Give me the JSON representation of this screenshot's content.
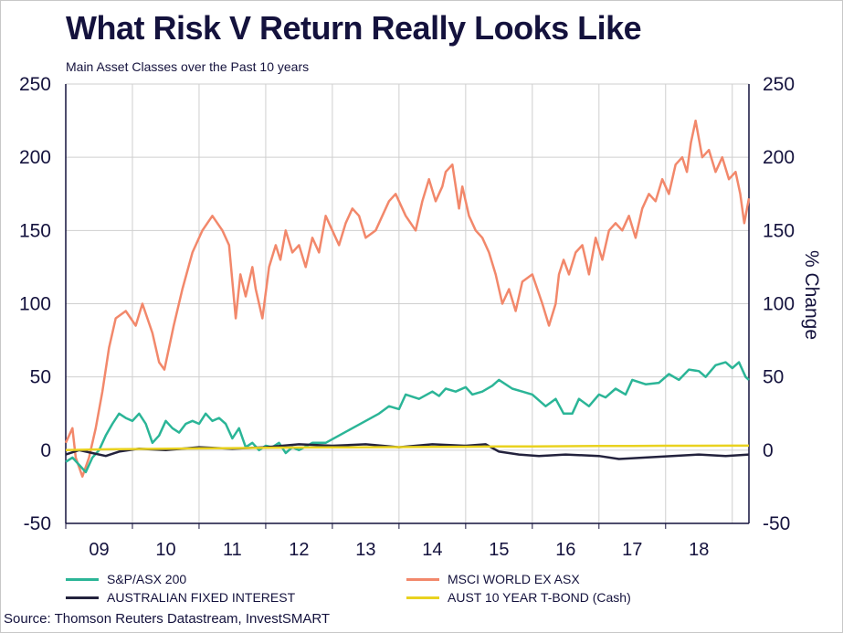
{
  "title": "What Risk V Return Really Looks Like",
  "subtitle": "Main Asset Classes over the Past 10 years",
  "source": "Source: Thomson Reuters Datastream, InvestSMART",
  "colors": {
    "sp_asx": "#2bb597",
    "msci": "#f2886b",
    "fixed": "#23223d",
    "tbond": "#e9d21f",
    "grid": "#cfcfcf",
    "text": "#14123d"
  },
  "chart_data": {
    "type": "line",
    "ylabel_right": "% Change",
    "ylim": [
      -50,
      250
    ],
    "yticks": [
      -50,
      0,
      50,
      100,
      150,
      200,
      250
    ],
    "xlim": [
      2008.5,
      2018.75
    ],
    "xticks": [
      {
        "label": "09",
        "x": 2009
      },
      {
        "label": "10",
        "x": 2010
      },
      {
        "label": "11",
        "x": 2011
      },
      {
        "label": "12",
        "x": 2012
      },
      {
        "label": "13",
        "x": 2013
      },
      {
        "label": "14",
        "x": 2014
      },
      {
        "label": "15",
        "x": 2015
      },
      {
        "label": "16",
        "x": 2016
      },
      {
        "label": "17",
        "x": 2017
      },
      {
        "label": "18",
        "x": 2018
      }
    ],
    "grid": true,
    "legend_position": "bottom",
    "series": [
      {
        "name": "MSCI WORLD EX ASX",
        "color_key": "msci",
        "x": [
          2008.5,
          2008.6,
          2008.65,
          2008.75,
          2008.85,
          2008.95,
          2009.05,
          2009.15,
          2009.25,
          2009.4,
          2009.55,
          2009.65,
          2009.8,
          2009.9,
          2009.98,
          2010.05,
          2010.12,
          2010.25,
          2010.4,
          2010.55,
          2010.7,
          2010.85,
          2010.95,
          2011.05,
          2011.12,
          2011.2,
          2011.3,
          2011.35,
          2011.45,
          2011.55,
          2011.65,
          2011.72,
          2011.8,
          2011.9,
          2012.0,
          2012.1,
          2012.2,
          2012.3,
          2012.4,
          2012.5,
          2012.6,
          2012.7,
          2012.8,
          2012.9,
          2013.0,
          2013.15,
          2013.25,
          2013.35,
          2013.45,
          2013.6,
          2013.75,
          2013.85,
          2013.95,
          2014.05,
          2014.15,
          2014.2,
          2014.3,
          2014.4,
          2014.45,
          2014.55,
          2014.65,
          2014.75,
          2014.85,
          2014.95,
          2015.05,
          2015.15,
          2015.25,
          2015.35,
          2015.5,
          2015.65,
          2015.75,
          2015.85,
          2015.9,
          2015.97,
          2016.05,
          2016.15,
          2016.25,
          2016.35,
          2016.45,
          2016.55,
          2016.65,
          2016.75,
          2016.85,
          2016.95,
          2017.05,
          2017.15,
          2017.25,
          2017.35,
          2017.45,
          2017.55,
          2017.65,
          2017.75,
          2017.82,
          2017.88,
          2017.95,
          2018.05,
          2018.15,
          2018.25,
          2018.35,
          2018.45,
          2018.55,
          2018.62,
          2018.68,
          2018.75
        ],
        "values": [
          5,
          15,
          -5,
          -18,
          -5,
          15,
          40,
          70,
          90,
          95,
          85,
          100,
          80,
          60,
          55,
          70,
          85,
          110,
          135,
          150,
          160,
          150,
          140,
          90,
          120,
          105,
          125,
          110,
          90,
          125,
          140,
          130,
          150,
          135,
          140,
          125,
          145,
          135,
          160,
          150,
          140,
          155,
          165,
          160,
          145,
          150,
          160,
          170,
          175,
          160,
          150,
          170,
          185,
          170,
          180,
          190,
          195,
          165,
          180,
          160,
          150,
          145,
          135,
          120,
          100,
          110,
          95,
          115,
          120,
          100,
          85,
          100,
          120,
          130,
          120,
          135,
          140,
          120,
          145,
          130,
          150,
          155,
          150,
          160,
          145,
          165,
          175,
          170,
          185,
          175,
          195,
          200,
          190,
          210,
          225,
          200,
          205,
          190,
          200,
          185,
          190,
          175,
          155,
          172
        ]
      },
      {
        "name": "S&P/ASX 200",
        "color_key": "sp_asx",
        "x": [
          2008.5,
          2008.6,
          2008.7,
          2008.8,
          2008.9,
          2009.0,
          2009.1,
          2009.2,
          2009.3,
          2009.4,
          2009.5,
          2009.6,
          2009.7,
          2009.8,
          2009.9,
          2010.0,
          2010.1,
          2010.2,
          2010.3,
          2010.4,
          2010.5,
          2010.6,
          2010.7,
          2010.8,
          2010.9,
          2011.0,
          2011.1,
          2011.2,
          2011.3,
          2011.4,
          2011.5,
          2011.6,
          2011.7,
          2011.8,
          2011.9,
          2012.0,
          2012.2,
          2012.4,
          2012.6,
          2012.8,
          2013.0,
          2013.2,
          2013.35,
          2013.5,
          2013.6,
          2013.8,
          2014.0,
          2014.1,
          2014.2,
          2014.35,
          2014.5,
          2014.6,
          2014.75,
          2014.9,
          2015.0,
          2015.2,
          2015.35,
          2015.5,
          2015.7,
          2015.85,
          2015.97,
          2016.1,
          2016.2,
          2016.35,
          2016.5,
          2016.6,
          2016.75,
          2016.9,
          2017.0,
          2017.2,
          2017.4,
          2017.55,
          2017.7,
          2017.85,
          2018.0,
          2018.1,
          2018.25,
          2018.4,
          2018.5,
          2018.6,
          2018.7,
          2018.75
        ],
        "values": [
          -8,
          -5,
          -10,
          -15,
          -5,
          0,
          10,
          18,
          25,
          22,
          20,
          25,
          18,
          5,
          10,
          20,
          15,
          12,
          18,
          20,
          18,
          25,
          20,
          22,
          18,
          8,
          15,
          2,
          5,
          0,
          3,
          2,
          5,
          -2,
          2,
          0,
          5,
          5,
          10,
          15,
          20,
          25,
          30,
          28,
          38,
          35,
          40,
          37,
          42,
          40,
          43,
          38,
          40,
          44,
          48,
          42,
          40,
          38,
          30,
          35,
          25,
          25,
          35,
          30,
          38,
          36,
          42,
          38,
          48,
          45,
          46,
          52,
          48,
          55,
          54,
          50,
          58,
          60,
          56,
          60,
          50,
          48
        ]
      },
      {
        "name": "AUSTRALIAN FIXED INTEREST",
        "color_key": "fixed",
        "x": [
          2008.5,
          2008.7,
          2008.9,
          2009.1,
          2009.3,
          2009.6,
          2010.0,
          2010.5,
          2011.0,
          2011.5,
          2012.0,
          2012.5,
          2013.0,
          2013.5,
          2014.0,
          2014.5,
          2014.8,
          2015.0,
          2015.3,
          2015.6,
          2016.0,
          2016.5,
          2016.8,
          2017.2,
          2017.6,
          2018.0,
          2018.4,
          2018.75
        ],
        "values": [
          -3,
          0,
          -2,
          -4,
          -1,
          1,
          0,
          2,
          1,
          2,
          4,
          3,
          4,
          2,
          4,
          3,
          4,
          -1,
          -3,
          -4,
          -3,
          -4,
          -6,
          -5,
          -4,
          -3,
          -4,
          -3
        ]
      },
      {
        "name": "AUST 10 YEAR T-BOND (Cash)",
        "color_key": "tbond",
        "x": [
          2008.5,
          2009.0,
          2009.5,
          2010.0,
          2010.5,
          2011.0,
          2011.5,
          2012.0,
          2012.5,
          2013.0,
          2013.5,
          2014.0,
          2014.5,
          2015.0,
          2015.5,
          2016.0,
          2016.5,
          2017.0,
          2017.5,
          2018.0,
          2018.5,
          2018.75
        ],
        "values": [
          0,
          0.5,
          0.8,
          1,
          1.2,
          1.4,
          1.6,
          1.8,
          1.9,
          2,
          2.1,
          2.2,
          2.3,
          2.5,
          2.6,
          2.7,
          2.8,
          2.9,
          3,
          3,
          3.1,
          3.1
        ]
      }
    ]
  },
  "legend": [
    {
      "label": "S&P/ASX 200",
      "color_key": "sp_asx"
    },
    {
      "label": "MSCI WORLD EX ASX",
      "color_key": "msci"
    },
    {
      "label": "AUSTRALIAN FIXED INTEREST",
      "color_key": "fixed"
    },
    {
      "label": "AUST 10 YEAR T-BOND (Cash)",
      "color_key": "tbond"
    }
  ]
}
